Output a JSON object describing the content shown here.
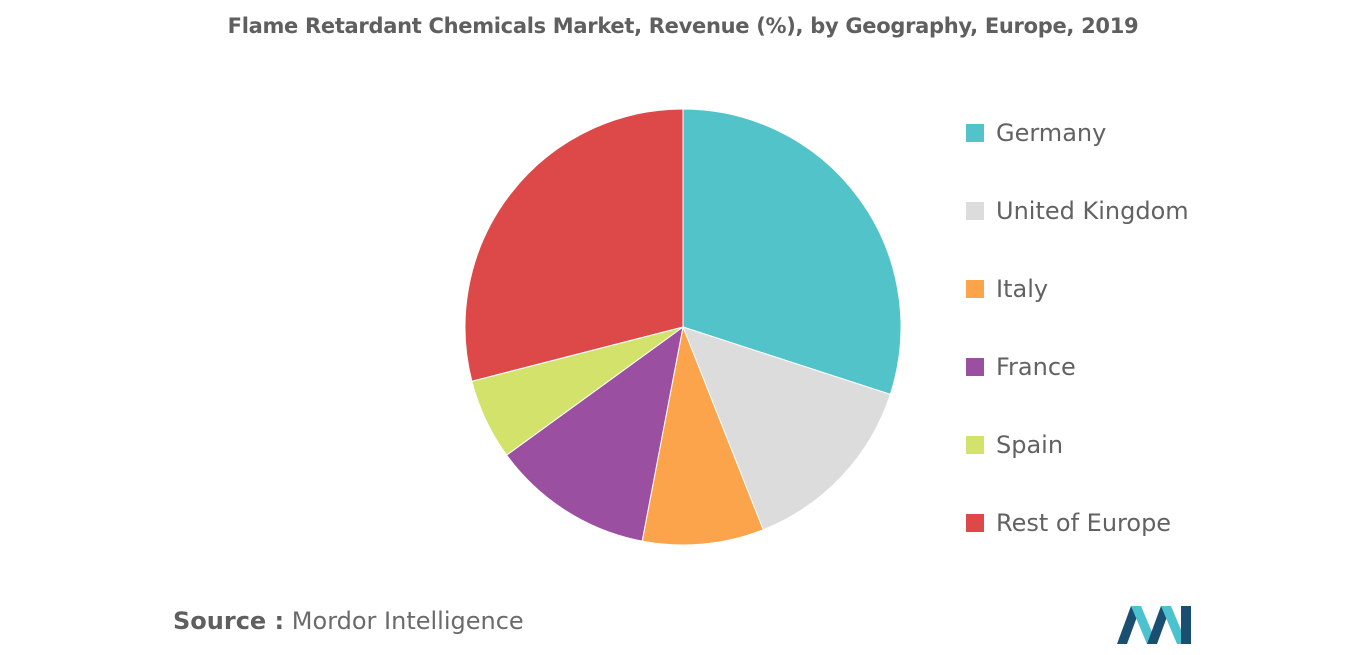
{
  "chart_data": {
    "type": "pie",
    "title": "Flame Retardant Chemicals Market, Revenue (%), by Geography, Europe, 2019",
    "legend_position": "right",
    "slices": [
      {
        "label": "Germany",
        "value": 30,
        "color": "#52c3c9"
      },
      {
        "label": "United Kingdom",
        "value": 14,
        "color": "#dcdcdc"
      },
      {
        "label": "Italy",
        "value": 9,
        "color": "#fba44b"
      },
      {
        "label": "France",
        "value": 12,
        "color": "#9b4fa0"
      },
      {
        "label": "Spain",
        "value": 6,
        "color": "#d2e26a"
      },
      {
        "label": "Rest of Europe",
        "value": 29,
        "color": "#dd4848"
      }
    ]
  },
  "source": {
    "prefix": "Source :",
    "name": "Mordor Intelligence"
  }
}
